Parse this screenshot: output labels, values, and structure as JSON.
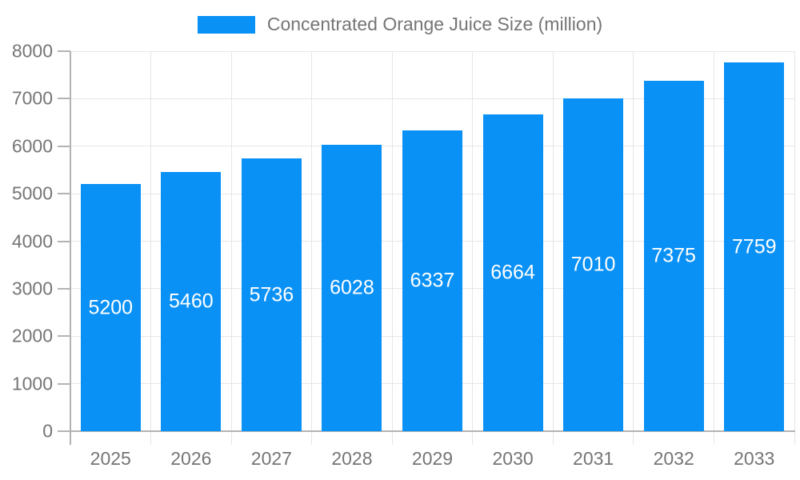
{
  "chart_data": {
    "type": "bar",
    "title": "Concentrated Orange Juice Size (million)",
    "legend_entries": [
      "Concentrated Orange Juice Size (million)"
    ],
    "legend_position": "top-center",
    "categories": [
      "2025",
      "2026",
      "2027",
      "2028",
      "2029",
      "2030",
      "2031",
      "2032",
      "2033"
    ],
    "values": [
      5200,
      5460,
      5736,
      6028,
      6337,
      6664,
      7010,
      7375,
      7759
    ],
    "value_labels_shown": true,
    "xlabel": "",
    "ylabel": "",
    "ylim": [
      0,
      8000
    ],
    "ytick_step": 1000,
    "yticks": [
      0,
      1000,
      2000,
      3000,
      4000,
      5000,
      6000,
      7000,
      8000
    ],
    "grid": true,
    "colors": {
      "bar": "#0A91F6",
      "value_label": "#FFFFFF",
      "axis_text": "#757575",
      "axis_line": "#B3B3B3",
      "gridline": "#E6E6E6"
    }
  }
}
